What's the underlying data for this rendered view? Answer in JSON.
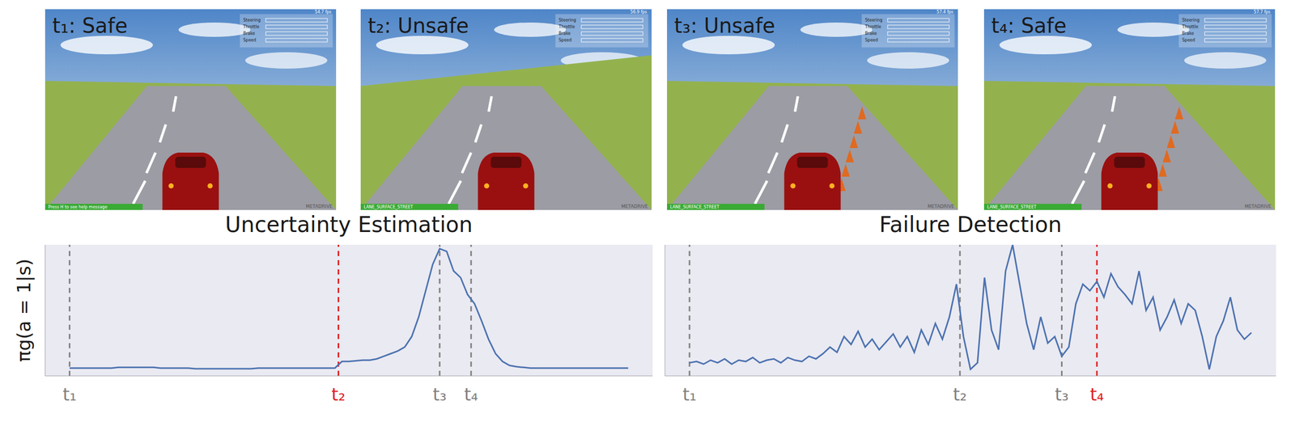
{
  "panels": [
    {
      "label": "t₁: Safe",
      "fps": "54.7 fps",
      "hud": [
        "Steering",
        "Throttle",
        "Brake",
        "Speed"
      ],
      "banner": "Press H to see help message",
      "logo": "METADRIVE"
    },
    {
      "label": "t₂: Unsafe",
      "fps": "56.9 fps",
      "hud": [
        "Steering",
        "Throttle",
        "Brake",
        "Speed"
      ],
      "banner": "LANE_SURFACE_STREET",
      "logo": "METADRIVE"
    },
    {
      "label": "t₃: Unsafe",
      "fps": "57.4 fps",
      "hud": [
        "Steering",
        "Throttle",
        "Brake",
        "Speed"
      ],
      "banner": "LANE_SURFACE_STREET",
      "logo": "METADRIVE"
    },
    {
      "label": "t₄: Safe",
      "fps": "57.7 fps",
      "hud": [
        "Steering",
        "Throttle",
        "Brake",
        "Speed"
      ],
      "banner": "LANE_SURFACE_STREET",
      "logo": "METADRIVE"
    }
  ],
  "chart_data": [
    {
      "type": "line",
      "title": "Uncertainty Estimation",
      "ylabel": "πg(a = 1|s)",
      "color": "#4c72b0",
      "xlim": [
        -7,
        167
      ],
      "ylim": [
        0,
        1
      ],
      "tick_labels": "x",
      "grid": false,
      "xticks": [
        {
          "value": 0,
          "label": "t₁"
        },
        {
          "value": 77,
          "label": "t₂"
        },
        {
          "value": 106,
          "label": "t₃"
        },
        {
          "value": 115,
          "label": "t₄"
        }
      ],
      "vlines": [
        {
          "x": 0,
          "color": "#808080"
        },
        {
          "x": 77,
          "color": "#e02020"
        },
        {
          "x": 106,
          "color": "#808080"
        },
        {
          "x": 115,
          "color": "#808080"
        }
      ],
      "x": [
        0,
        2,
        4,
        6,
        8,
        10,
        12,
        14,
        16,
        18,
        20,
        22,
        24,
        26,
        28,
        30,
        32,
        34,
        36,
        38,
        40,
        42,
        44,
        46,
        48,
        50,
        52,
        54,
        56,
        58,
        60,
        62,
        64,
        66,
        68,
        70,
        72,
        74,
        76,
        78,
        80,
        82,
        84,
        86,
        88,
        90,
        92,
        94,
        96,
        98,
        100,
        102,
        104,
        106,
        108,
        110,
        112,
        114,
        116,
        118,
        120,
        122,
        124,
        126,
        128,
        130,
        132,
        134,
        136,
        138,
        140,
        142,
        144,
        146,
        148,
        150,
        152,
        154,
        156,
        158,
        160
      ],
      "values": [
        0.06,
        0.06,
        0.06,
        0.06,
        0.06,
        0.06,
        0.06,
        0.065,
        0.065,
        0.065,
        0.065,
        0.065,
        0.065,
        0.06,
        0.06,
        0.06,
        0.06,
        0.06,
        0.055,
        0.055,
        0.055,
        0.055,
        0.055,
        0.055,
        0.055,
        0.055,
        0.055,
        0.06,
        0.06,
        0.06,
        0.06,
        0.06,
        0.06,
        0.06,
        0.06,
        0.06,
        0.06,
        0.06,
        0.06,
        0.11,
        0.11,
        0.115,
        0.12,
        0.12,
        0.13,
        0.15,
        0.17,
        0.19,
        0.22,
        0.3,
        0.45,
        0.65,
        0.85,
        0.97,
        0.95,
        0.8,
        0.75,
        0.62,
        0.55,
        0.42,
        0.28,
        0.17,
        0.11,
        0.08,
        0.07,
        0.065,
        0.06,
        0.06,
        0.06,
        0.06,
        0.06,
        0.06,
        0.06,
        0.06,
        0.06,
        0.06,
        0.06,
        0.06,
        0.06,
        0.06,
        0.06
      ]
    },
    {
      "type": "line",
      "title": "Failure Detection",
      "color": "#4c72b0",
      "xlim": [
        -7,
        167
      ],
      "ylim": [
        0,
        1
      ],
      "tick_labels": "x",
      "grid": false,
      "xticks": [
        {
          "value": 0,
          "label": "t₁"
        },
        {
          "value": 77,
          "label": "t₂"
        },
        {
          "value": 106,
          "label": "t₃"
        },
        {
          "value": 116,
          "label": "t₄"
        }
      ],
      "vlines": [
        {
          "x": 0,
          "color": "#808080"
        },
        {
          "x": 77,
          "color": "#808080"
        },
        {
          "x": 106,
          "color": "#808080"
        },
        {
          "x": 116,
          "color": "#e02020"
        }
      ],
      "x": [
        0,
        2,
        4,
        6,
        8,
        10,
        12,
        14,
        16,
        18,
        20,
        22,
        24,
        26,
        28,
        30,
        32,
        34,
        36,
        38,
        40,
        42,
        44,
        46,
        48,
        50,
        52,
        54,
        56,
        58,
        60,
        62,
        64,
        66,
        68,
        70,
        72,
        74,
        76,
        78,
        80,
        82,
        84,
        86,
        88,
        90,
        92,
        94,
        96,
        98,
        100,
        102,
        104,
        106,
        108,
        110,
        112,
        114,
        116,
        118,
        120,
        122,
        124,
        126,
        128,
        130,
        132,
        134,
        136,
        138,
        140,
        142,
        144,
        146,
        148,
        150,
        152,
        154,
        156,
        158,
        160
      ],
      "values": [
        0.1,
        0.11,
        0.09,
        0.12,
        0.1,
        0.13,
        0.09,
        0.12,
        0.11,
        0.14,
        0.1,
        0.12,
        0.13,
        0.1,
        0.14,
        0.12,
        0.11,
        0.15,
        0.13,
        0.17,
        0.22,
        0.18,
        0.3,
        0.24,
        0.34,
        0.22,
        0.28,
        0.2,
        0.26,
        0.32,
        0.22,
        0.3,
        0.18,
        0.35,
        0.24,
        0.4,
        0.28,
        0.45,
        0.7,
        0.3,
        0.05,
        0.1,
        0.75,
        0.35,
        0.2,
        0.8,
        1.0,
        0.7,
        0.4,
        0.2,
        0.45,
        0.25,
        0.3,
        0.15,
        0.22,
        0.55,
        0.7,
        0.65,
        0.72,
        0.6,
        0.78,
        0.68,
        0.62,
        0.55,
        0.8,
        0.5,
        0.6,
        0.35,
        0.45,
        0.58,
        0.4,
        0.55,
        0.5,
        0.3,
        0.05,
        0.3,
        0.42,
        0.6,
        0.35,
        0.28,
        0.33
      ]
    }
  ]
}
